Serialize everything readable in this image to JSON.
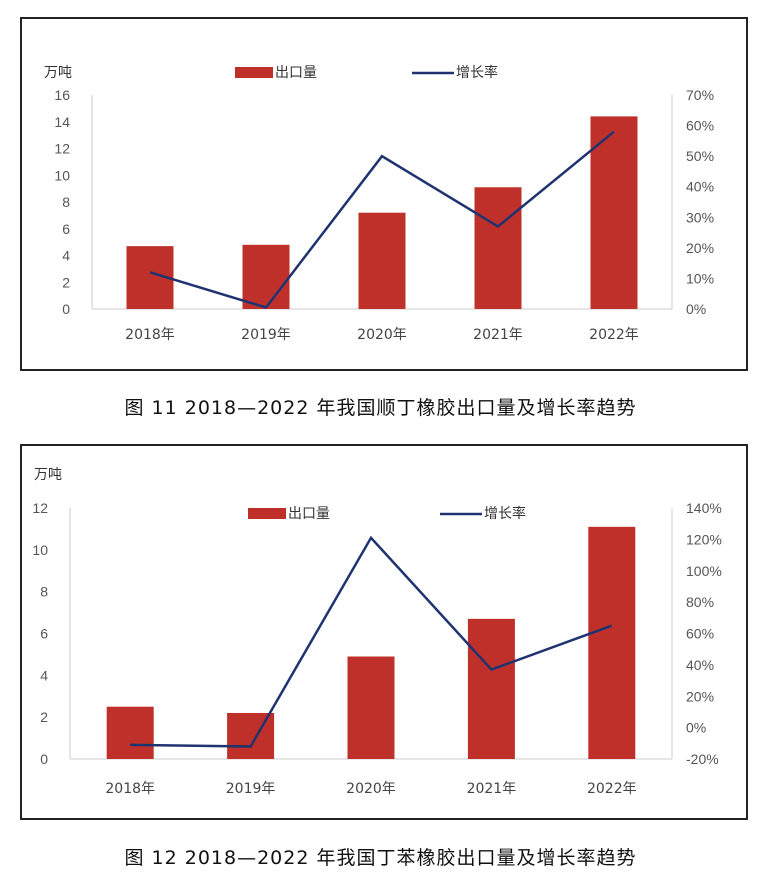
{
  "colors": {
    "bar": "#c0302a",
    "line": "#1f3370",
    "axis": "#cccccc"
  },
  "chart_data": [
    {
      "type": "bar",
      "caption": "图 11 2018—2022 年我国顺丁橡胶出口量及增长率趋势",
      "unit": "万吨",
      "categories": [
        "2018年",
        "2019年",
        "2020年",
        "2021年",
        "2022年"
      ],
      "series": [
        {
          "name": "出口量",
          "type": "bar",
          "axis": "left",
          "values": [
            4.7,
            4.8,
            7.2,
            9.1,
            14.4
          ]
        },
        {
          "name": "增长率",
          "type": "line",
          "axis": "right",
          "values": [
            12,
            0.5,
            50,
            27,
            58
          ]
        }
      ],
      "y_left": {
        "min": 0,
        "max": 16,
        "step": 2,
        "ticks": [
          "0",
          "2",
          "4",
          "6",
          "8",
          "10",
          "12",
          "14",
          "16"
        ]
      },
      "y_right": {
        "min": 0,
        "max": 70,
        "step": 10,
        "ticks": [
          "0%",
          "10%",
          "20%",
          "30%",
          "40%",
          "50%",
          "60%",
          "70%"
        ]
      },
      "grid": false,
      "legend": "top"
    },
    {
      "type": "bar",
      "caption": "图 12 2018—2022 年我国丁苯橡胶出口量及增长率趋势",
      "unit": "万吨",
      "categories": [
        "2018年",
        "2019年",
        "2020年",
        "2021年",
        "2022年"
      ],
      "series": [
        {
          "name": "出口量",
          "type": "bar",
          "axis": "left",
          "values": [
            2.5,
            2.2,
            4.9,
            6.7,
            11.1
          ]
        },
        {
          "name": "增长率",
          "type": "line",
          "axis": "right",
          "values": [
            -11,
            -12,
            121,
            37,
            65
          ]
        }
      ],
      "y_left": {
        "min": 0,
        "max": 12,
        "step": 2,
        "ticks": [
          "0",
          "2",
          "4",
          "6",
          "8",
          "10",
          "12"
        ]
      },
      "y_right": {
        "min": -20,
        "max": 140,
        "step": 20,
        "ticks": [
          "-20%",
          "0%",
          "20%",
          "40%",
          "60%",
          "80%",
          "100%",
          "120%",
          "140%"
        ]
      },
      "grid": false,
      "legend": "top"
    }
  ]
}
